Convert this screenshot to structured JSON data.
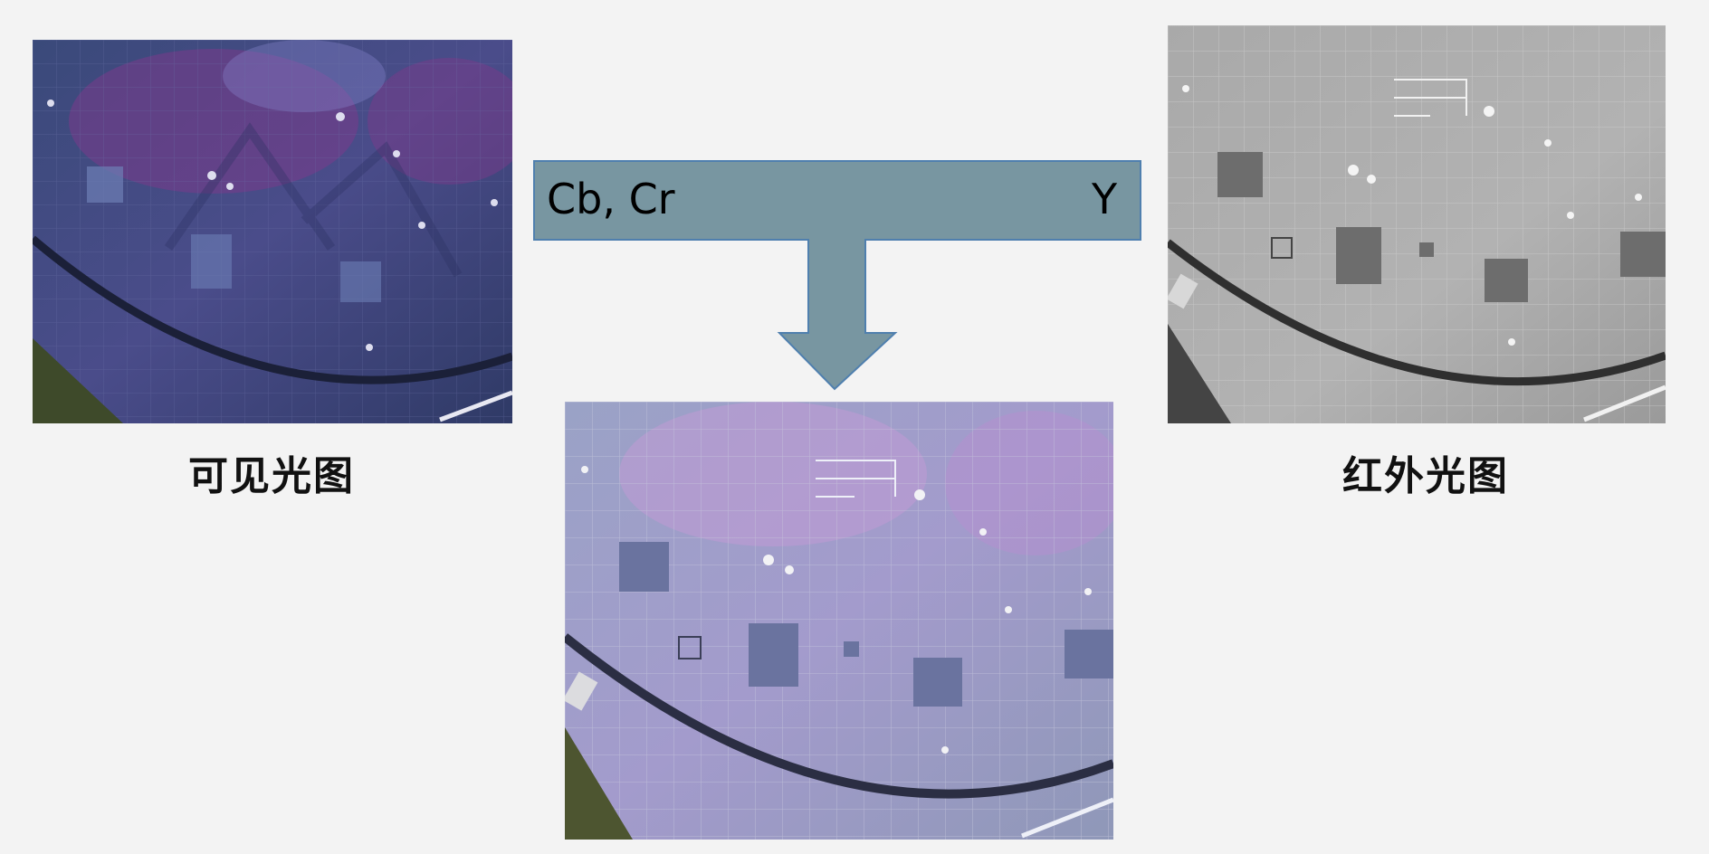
{
  "captions": {
    "visible": "可见光图",
    "infrared": "红外光图"
  },
  "arrow": {
    "left_label": "Cb, Cr",
    "right_label": "Y",
    "fill_color": "#7896a1",
    "stroke_color": "#4f7fae"
  },
  "images": {
    "visible": "visible-light-image",
    "infrared": "infrared-image",
    "fused": "fused-image"
  }
}
